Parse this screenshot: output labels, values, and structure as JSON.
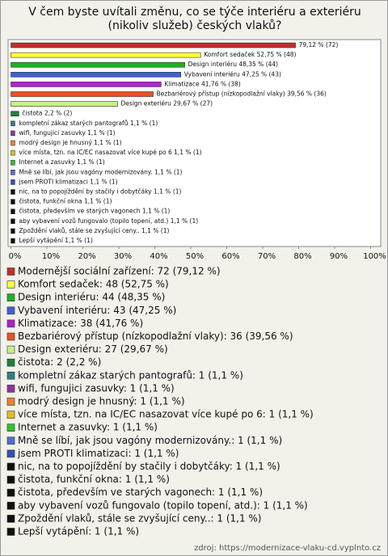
{
  "chart_data": {
    "type": "hbar",
    "title": "V čem byste uvítali změnu, co se týče interiéru a exteriéru (nikoliv služeb) českých vlaků?",
    "categories": [
      "Modernější sociální zařízení",
      "Komfort sedaček",
      "Design interiéru",
      "Vybavení interiéru",
      "Klimatizace",
      "Bezbariérový přístup (nízkopodlažní vlaky)",
      "Design exteriéru",
      "čistota",
      "kompletní zákaz starých pantografů",
      "wifi, fungujici zasuvky",
      "modrý design je hnusný",
      "více místa, tzn. na IC/EC nasazovat více kupé po 6",
      "Internet a zasuvky",
      "Mně se líbí, jak jsou vagóny modernizovány.",
      "jsem PROTI klimatizaci",
      "nic, na to popojíždění by stačily i dobytčáky",
      "čistota, funkční okna",
      "čistota, především ve starých vagonech",
      "aby vybavení vozů fungovalo (topilo topení, atd.)",
      "Zpoždění vlaků, stále se zvyšující ceny..",
      "Lepší vytápění"
    ],
    "values": [
      79.12,
      52.75,
      48.35,
      47.25,
      41.76,
      39.56,
      29.67,
      2.2,
      1.1,
      1.1,
      1.1,
      1.1,
      1.1,
      1.1,
      1.1,
      1.1,
      1.1,
      1.1,
      1.1,
      1.1,
      1.1
    ],
    "value_labels": [
      "79,12 % (72)",
      "Komfort sedaček 52,75 % (48)",
      "Design interiéru 48,35 % (44)",
      "Vybavení interiéru 47,25 % (43)",
      "Klimatizace 41,76 % (38)",
      "Bezbariérový přístup (nízkopodlažní vlaky) 39,56 % (36)",
      "Design exteriéru 29,67 % (27)",
      "čistota 2,2 % (2)",
      "kompletní zákaz starých pantografů 1,1 % (1)",
      "wifi, fungujici zasuvky 1,1 % (1)",
      "modrý design je hnusný 1,1 % (1)",
      "více místa, tzn. na IC/EC nasazovat více kupé po 6 1,1 % (1)",
      "Internet a zasuvky 1,1 % (1)",
      "Mně se líbí, jak jsou vagóny modernizovány. 1,1 % (1)",
      "jsem PROTI klimatizaci 1,1 % (1)",
      "nic, na to popojíždění by stačily i dobytčáky 1,1 % (1)",
      "čistota, funkční okna 1,1 % (1)",
      "čistota, především ve starých vagonech 1,1 % (1)",
      "aby vybavení vozů fungovalo (topilo topení, atd.) 1,1 % (1)",
      "Zpoždění vlaků, stále se zvyšující ceny.. 1,1 % (1)",
      "Lepší vytápění 1,1 % (1)"
    ],
    "legend_labels": [
      "Modernější sociální zařízení: 72 (79,12 %)",
      "Komfort sedaček: 48 (52,75 %)",
      "Design interiéru: 44 (48,35 %)",
      "Vybavení interiéru: 43 (47,25 %)",
      "Klimatizace: 38 (41,76 %)",
      "Bezbariérový přístup (nízkopodlažní vlaky): 36 (39,56 %)",
      "Design exteriéru: 27 (29,67 %)",
      "čistota: 2 (2,2 %)",
      "kompletní zákaz starých pantografů: 1 (1,1 %)",
      "wifi, fungujici zasuvky: 1 (1,1 %)",
      "modrý design je hnusný: 1 (1,1 %)",
      "více místa, tzn. na IC/EC nasazovat více kupé po 6: 1 (1,1 %)",
      "Internet a zasuvky: 1 (1,1 %)",
      "Mně se líbí, jak jsou vagóny modernizovány.: 1 (1,1 %)",
      "jsem PROTI klimatizaci: 1 (1,1 %)",
      "nic, na to popojíždění by stačily i dobytčáky: 1 (1,1 %)",
      "čistota, funkční okna: 1 (1,1 %)",
      "čistota, především ve starých vagonech: 1 (1,1 %)",
      "aby vybavení vozů fungovalo (topilo topení, atd.): 1 (1,1 %)",
      "Zpoždění vlaků, stále se zvyšující ceny..: 1 (1,1 %)",
      "Lepší vytápění: 1 (1,1 %)"
    ],
    "colors": [
      "#c0302a",
      "#ffff40",
      "#20b020",
      "#4060d0",
      "#b020d0",
      "#f05020",
      "#c8f088",
      "#208040",
      "#308080",
      "#9030a0",
      "#f08030",
      "#e0c020",
      "#30c030",
      "#5070d0",
      "#3050c0",
      "#101010",
      "#101010",
      "#101010",
      "#101010",
      "#101010",
      "#101010"
    ],
    "xlim": [
      0,
      100
    ],
    "xticks": [
      {
        "value": 0,
        "label": "0%"
      },
      {
        "value": 10,
        "label": "10%"
      },
      {
        "value": 20,
        "label": "20%"
      },
      {
        "value": 30,
        "label": "30%"
      },
      {
        "value": 40,
        "label": "40%"
      },
      {
        "value": 50,
        "label": "50%"
      },
      {
        "value": 60,
        "label": "60%"
      },
      {
        "value": 70,
        "label": "70%"
      },
      {
        "value": 80,
        "label": "80%"
      },
      {
        "value": 90,
        "label": "90%"
      },
      {
        "value": 100,
        "label": "100%"
      }
    ],
    "source": "zdroj: https://modernizace-vlaku-cd.vyplnto.cz"
  }
}
